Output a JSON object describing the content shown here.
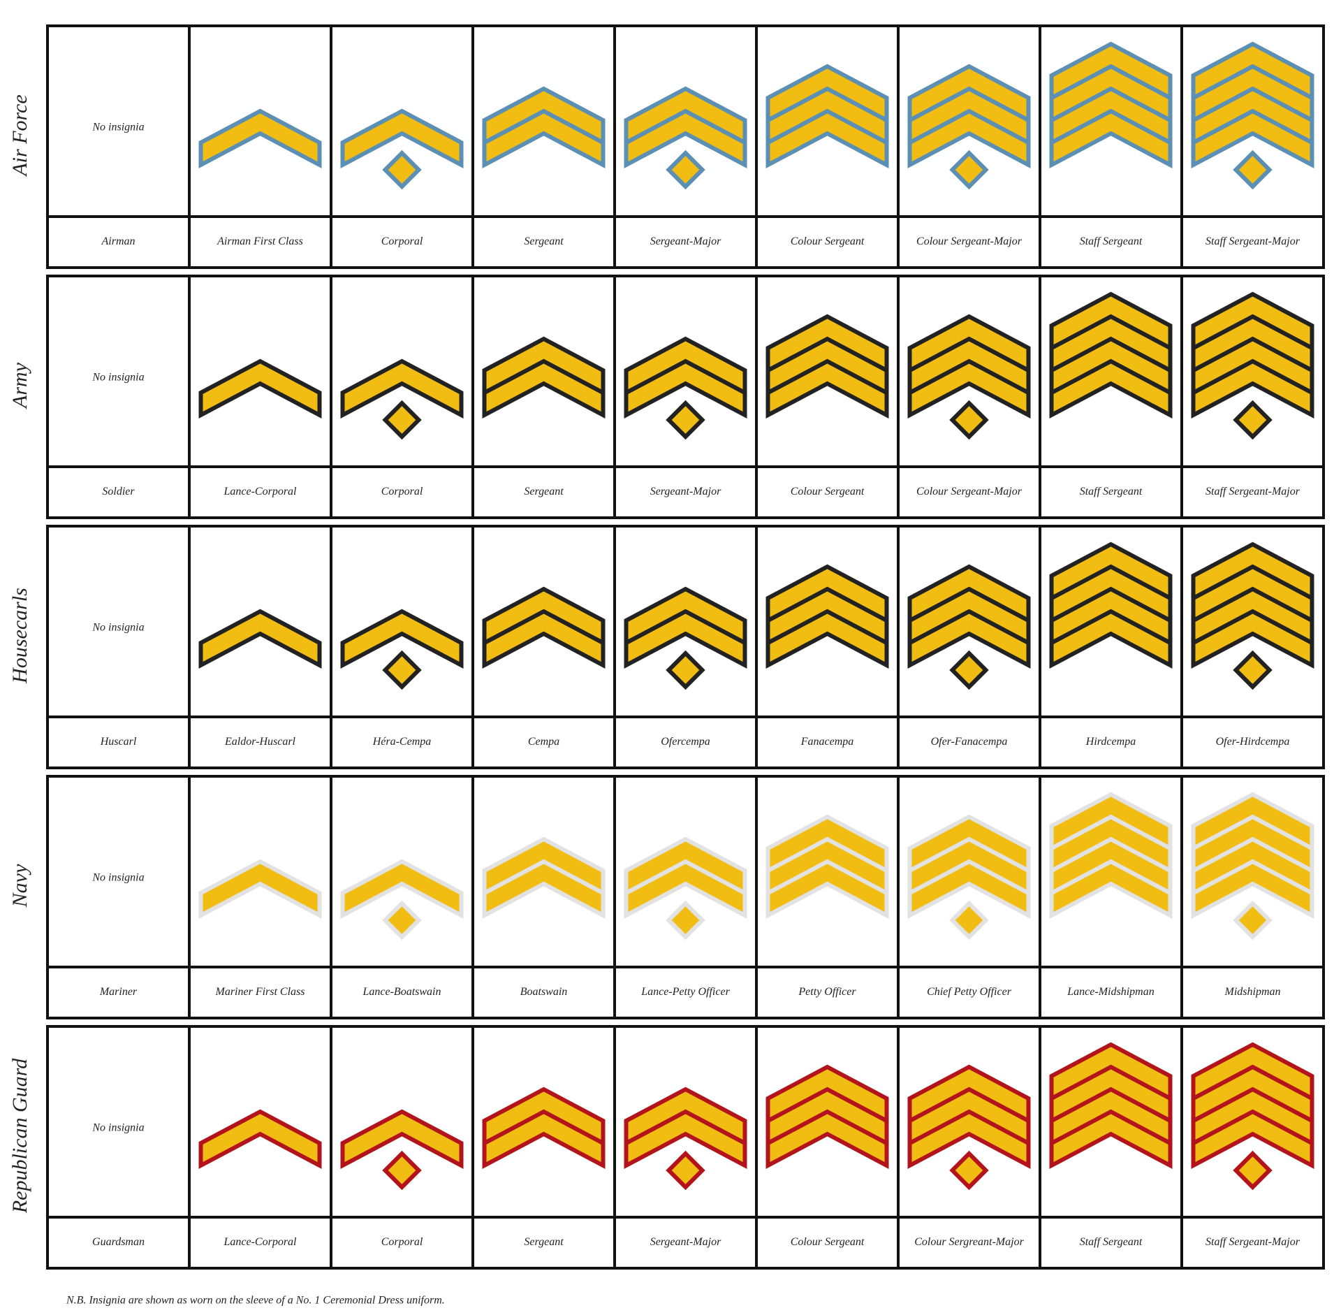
{
  "groups": [
    {
      "branch": "Air Force",
      "no_insignia": "No insignia",
      "trim": "#5b8fb3",
      "ranks": [
        "Airman",
        "Airman First Class",
        "Corporal",
        "Sergeant",
        "Sergeant-Major",
        "Colour Sergeant",
        "Colour Sergeant-Major",
        "Staff Sergeant",
        "Staff Sergeant-Major"
      ]
    },
    {
      "branch": "Army",
      "no_insignia": "No insignia",
      "trim": "#222222",
      "ranks": [
        "Soldier",
        "Lance-Corporal",
        "Corporal",
        "Sergeant",
        "Sergeant-Major",
        "Colour Sergeant",
        "Colour Sergeant-Major",
        "Staff Sergeant",
        "Staff Sergeant-Major"
      ]
    },
    {
      "branch": "Housecarls",
      "no_insignia": "No insignia",
      "trim": "#222222",
      "ranks": [
        "Huscarl",
        "Ealdor-Huscarl",
        "Héra-Cempa",
        "Cempa",
        "Ofercempa",
        "Fanacempa",
        "Ofer-Fanacempa",
        "Hirdcempa",
        "Ofer-Hirdcempa"
      ]
    },
    {
      "branch": "Navy",
      "no_insignia": "No insignia",
      "trim": "#e2e2e2",
      "ranks": [
        "Mariner",
        "Mariner First Class",
        "Lance-Boatswain",
        "Boatswain",
        "Lance-Petty Officer",
        "Petty Officer",
        "Chief Petty Officer",
        "Lance-Midshipman",
        "Midshipman"
      ]
    },
    {
      "branch": "Republican Guard",
      "no_insignia": "No insignia",
      "trim": "#b3141b",
      "ranks": [
        "Guardsman",
        "Lance-Corporal",
        "Corporal",
        "Sergeant",
        "Sergeant-Major",
        "Colour Sergeant",
        "Colour Sergreant-Major",
        "Staff Sergeant",
        "Staff Sergeant-Major"
      ]
    }
  ],
  "footnote": "N.B. Insignia are shown as worn on the sleeve of a No. 1 Ceremonial Dress uniform."
}
